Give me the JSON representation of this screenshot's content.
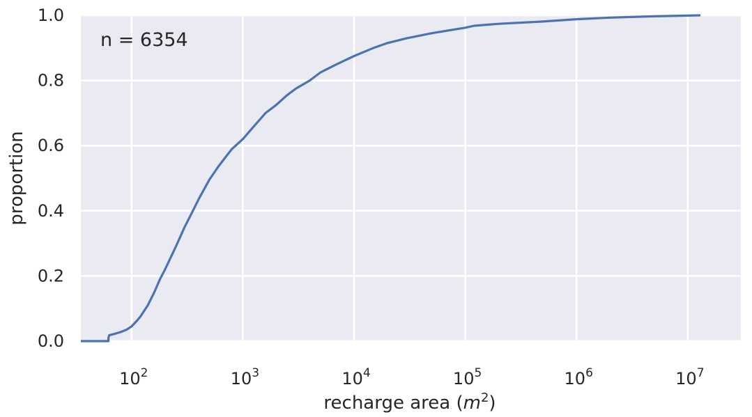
{
  "chart_data": {
    "type": "line",
    "subtype": "ecdf",
    "title": "",
    "xlabel": "recharge area",
    "xlabel_unit": "m",
    "xlabel_unit_exponent": "2",
    "ylabel": "proportion",
    "x_scale": "log",
    "xlim": [
      35,
      30000000
    ],
    "ylim": [
      0.0,
      1.0
    ],
    "x_ticks": [
      {
        "value": 100,
        "base": "10",
        "exp": "2"
      },
      {
        "value": 1000,
        "base": "10",
        "exp": "3"
      },
      {
        "value": 10000,
        "base": "10",
        "exp": "4"
      },
      {
        "value": 100000,
        "base": "10",
        "exp": "5"
      },
      {
        "value": 1000000,
        "base": "10",
        "exp": "6"
      },
      {
        "value": 10000000,
        "base": "10",
        "exp": "7"
      }
    ],
    "y_ticks": [
      "0.0",
      "0.2",
      "0.4",
      "0.6",
      "0.8",
      "1.0"
    ],
    "grid": true,
    "background": "#eaeaf2",
    "line_color": "#4c72b0",
    "annotation": "n = 6354",
    "series": [
      {
        "x": [
          35,
          62,
          62,
          63,
          70,
          80,
          90,
          100,
          110,
          120,
          140,
          160,
          180,
          200,
          250,
          300,
          350,
          400,
          500,
          600,
          700,
          800,
          1000,
          1300,
          1600,
          2000,
          2500,
          3000,
          4000,
          5000,
          7000,
          10000,
          15000,
          20000,
          30000,
          50000,
          100000,
          120000,
          200000,
          500000,
          1000000,
          2000000,
          5000000,
          13000000
        ],
        "y": [
          0.0,
          0.0,
          0.01,
          0.018,
          0.022,
          0.028,
          0.035,
          0.045,
          0.06,
          0.075,
          0.11,
          0.15,
          0.19,
          0.22,
          0.29,
          0.35,
          0.395,
          0.435,
          0.495,
          0.535,
          0.565,
          0.59,
          0.62,
          0.665,
          0.7,
          0.725,
          0.755,
          0.775,
          0.8,
          0.825,
          0.85,
          0.875,
          0.9,
          0.915,
          0.93,
          0.945,
          0.962,
          0.968,
          0.974,
          0.981,
          0.988,
          0.993,
          0.997,
          1.0
        ]
      }
    ]
  }
}
